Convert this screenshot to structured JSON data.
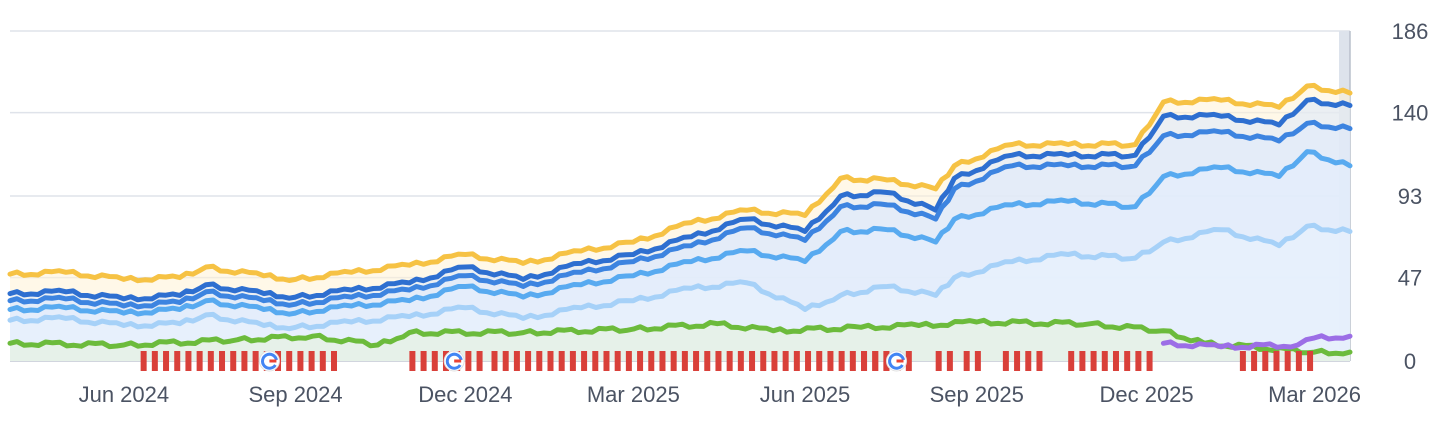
{
  "chart_data": {
    "type": "area",
    "x_axis": {
      "min": "2024-04-01",
      "max": "2026-03-20",
      "tick_labels": [
        {
          "label": "Jun 2024",
          "date": "2024-06-01"
        },
        {
          "label": "Sep 2024",
          "date": "2024-09-01"
        },
        {
          "label": "Dec 2024",
          "date": "2024-12-01"
        },
        {
          "label": "Mar 2025",
          "date": "2025-03-01"
        },
        {
          "label": "Jun 2025",
          "date": "2025-06-01"
        },
        {
          "label": "Sep 2025",
          "date": "2025-09-01"
        },
        {
          "label": "Dec 2025",
          "date": "2025-12-01"
        },
        {
          "label": "Mar 2026",
          "date": "2026-03-01"
        }
      ]
    },
    "y_axis": {
      "position": "right",
      "ylim": [
        0,
        186
      ],
      "tick_labels": [
        "0",
        "47",
        "93",
        "140",
        "186"
      ],
      "tick_values": [
        0,
        47,
        93,
        140,
        186
      ],
      "grid": true
    },
    "series": [
      {
        "color": "#f6c244",
        "fill": "#fff3d6",
        "points": [
          [
            "2024-04-01",
            49
          ],
          [
            "2024-05-01",
            50
          ],
          [
            "2024-06-01",
            46
          ],
          [
            "2024-07-01",
            47
          ],
          [
            "2024-07-15",
            53
          ],
          [
            "2024-08-15",
            48
          ],
          [
            "2024-09-01",
            46
          ],
          [
            "2024-10-01",
            50
          ],
          [
            "2024-11-01",
            54
          ],
          [
            "2024-12-01",
            60
          ],
          [
            "2025-01-01",
            55
          ],
          [
            "2025-02-01",
            62
          ],
          [
            "2025-03-01",
            67
          ],
          [
            "2025-04-01",
            78
          ],
          [
            "2025-05-01",
            85
          ],
          [
            "2025-06-01",
            82
          ],
          [
            "2025-06-20",
            103
          ],
          [
            "2025-07-15",
            102
          ],
          [
            "2025-08-10",
            97
          ],
          [
            "2025-08-20",
            110
          ],
          [
            "2025-09-20",
            122
          ],
          [
            "2025-10-20",
            122
          ],
          [
            "2025-11-25",
            122
          ],
          [
            "2025-12-10",
            146
          ],
          [
            "2026-01-10",
            147
          ],
          [
            "2026-02-10",
            143
          ],
          [
            "2026-02-25",
            155
          ],
          [
            "2026-03-20",
            151
          ]
        ]
      },
      {
        "color": "#2e6fd0",
        "fill": "#dbe8fb",
        "points": [
          [
            "2024-04-01",
            38
          ],
          [
            "2024-05-01",
            39
          ],
          [
            "2024-06-01",
            35
          ],
          [
            "2024-07-01",
            37
          ],
          [
            "2024-07-15",
            43
          ],
          [
            "2024-08-15",
            38
          ],
          [
            "2024-09-01",
            36
          ],
          [
            "2024-10-01",
            40
          ],
          [
            "2024-11-01",
            44
          ],
          [
            "2024-12-01",
            53
          ],
          [
            "2025-01-01",
            46
          ],
          [
            "2025-02-01",
            55
          ],
          [
            "2025-03-01",
            60
          ],
          [
            "2025-04-01",
            70
          ],
          [
            "2025-05-01",
            80
          ],
          [
            "2025-06-01",
            73
          ],
          [
            "2025-06-20",
            93
          ],
          [
            "2025-07-15",
            95
          ],
          [
            "2025-08-10",
            85
          ],
          [
            "2025-08-20",
            103
          ],
          [
            "2025-09-20",
            116
          ],
          [
            "2025-10-20",
            116
          ],
          [
            "2025-11-25",
            116
          ],
          [
            "2025-12-10",
            138
          ],
          [
            "2026-01-10",
            138
          ],
          [
            "2026-02-10",
            133
          ],
          [
            "2026-02-25",
            147
          ],
          [
            "2026-03-20",
            144
          ]
        ]
      },
      {
        "color": "#3d84e0",
        "fill": "#dfeafc",
        "points": [
          [
            "2024-04-01",
            34
          ],
          [
            "2024-05-01",
            35
          ],
          [
            "2024-06-01",
            31
          ],
          [
            "2024-07-01",
            33
          ],
          [
            "2024-07-15",
            39
          ],
          [
            "2024-08-15",
            34
          ],
          [
            "2024-09-01",
            32
          ],
          [
            "2024-10-01",
            36
          ],
          [
            "2024-11-01",
            40
          ],
          [
            "2024-12-01",
            48
          ],
          [
            "2025-01-01",
            42
          ],
          [
            "2025-02-01",
            50
          ],
          [
            "2025-03-01",
            56
          ],
          [
            "2025-04-01",
            65
          ],
          [
            "2025-05-01",
            75
          ],
          [
            "2025-06-01",
            68
          ],
          [
            "2025-06-20",
            87
          ],
          [
            "2025-07-15",
            88
          ],
          [
            "2025-08-10",
            80
          ],
          [
            "2025-08-20",
            97
          ],
          [
            "2025-09-20",
            110
          ],
          [
            "2025-10-20",
            110
          ],
          [
            "2025-11-25",
            110
          ],
          [
            "2025-12-10",
            127
          ],
          [
            "2026-01-10",
            129
          ],
          [
            "2026-02-10",
            124
          ],
          [
            "2026-02-25",
            134
          ],
          [
            "2026-03-20",
            131
          ]
        ]
      },
      {
        "color": "#58aaf0",
        "fill": "#e3eefd",
        "points": [
          [
            "2024-04-01",
            29
          ],
          [
            "2024-05-01",
            30
          ],
          [
            "2024-06-01",
            27
          ],
          [
            "2024-07-01",
            29
          ],
          [
            "2024-07-15",
            34
          ],
          [
            "2024-08-15",
            29
          ],
          [
            "2024-09-01",
            27
          ],
          [
            "2024-10-01",
            31
          ],
          [
            "2024-11-01",
            34
          ],
          [
            "2024-12-01",
            42
          ],
          [
            "2025-01-01",
            36
          ],
          [
            "2025-02-01",
            43
          ],
          [
            "2025-03-01",
            48
          ],
          [
            "2025-04-01",
            56
          ],
          [
            "2025-05-01",
            62
          ],
          [
            "2025-06-01",
            56
          ],
          [
            "2025-06-20",
            73
          ],
          [
            "2025-07-15",
            74
          ],
          [
            "2025-08-10",
            67
          ],
          [
            "2025-08-20",
            80
          ],
          [
            "2025-09-20",
            88
          ],
          [
            "2025-10-20",
            90
          ],
          [
            "2025-11-25",
            87
          ],
          [
            "2025-12-10",
            104
          ],
          [
            "2026-01-10",
            109
          ],
          [
            "2026-02-10",
            104
          ],
          [
            "2026-02-25",
            118
          ],
          [
            "2026-03-20",
            110
          ]
        ]
      },
      {
        "color": "#a6d1f8",
        "fill": "#e9f2fd",
        "points": [
          [
            "2024-04-01",
            23
          ],
          [
            "2024-05-01",
            24
          ],
          [
            "2024-06-01",
            20
          ],
          [
            "2024-07-01",
            21
          ],
          [
            "2024-07-15",
            26
          ],
          [
            "2024-08-15",
            20
          ],
          [
            "2024-09-01",
            19
          ],
          [
            "2024-10-01",
            22
          ],
          [
            "2024-11-01",
            25
          ],
          [
            "2024-12-01",
            30
          ],
          [
            "2025-01-01",
            24
          ],
          [
            "2025-02-01",
            30
          ],
          [
            "2025-03-01",
            34
          ],
          [
            "2025-04-01",
            41
          ],
          [
            "2025-05-01",
            44
          ],
          [
            "2025-06-01",
            29
          ],
          [
            "2025-06-20",
            37
          ],
          [
            "2025-07-15",
            42
          ],
          [
            "2025-08-10",
            37
          ],
          [
            "2025-08-20",
            47
          ],
          [
            "2025-09-20",
            56
          ],
          [
            "2025-10-20",
            60
          ],
          [
            "2025-11-25",
            58
          ],
          [
            "2025-12-10",
            67
          ],
          [
            "2026-01-10",
            74
          ],
          [
            "2026-02-10",
            65
          ],
          [
            "2026-02-25",
            76
          ],
          [
            "2026-03-20",
            73
          ]
        ]
      },
      {
        "color": "#6cbb3c",
        "fill": "#e6f3d8",
        "points": [
          [
            "2024-04-01",
            10
          ],
          [
            "2024-06-01",
            9
          ],
          [
            "2024-08-01",
            12
          ],
          [
            "2024-09-10",
            14
          ],
          [
            "2024-10-15",
            9
          ],
          [
            "2024-11-01",
            16
          ],
          [
            "2025-01-01",
            16
          ],
          [
            "2025-03-01",
            18
          ],
          [
            "2025-04-15",
            21
          ],
          [
            "2025-05-15",
            17
          ],
          [
            "2025-07-01",
            19
          ],
          [
            "2025-08-01",
            20
          ],
          [
            "2025-09-01",
            22
          ],
          [
            "2025-11-01",
            21
          ],
          [
            "2025-12-10",
            17
          ],
          [
            "2026-01-01",
            10
          ],
          [
            "2026-03-01",
            5
          ],
          [
            "2026-03-20",
            5
          ]
        ]
      },
      {
        "color": "#9c6ee6",
        "fill": "none",
        "points": [
          [
            "2025-12-10",
            10
          ],
          [
            "2026-01-10",
            8
          ],
          [
            "2026-02-20",
            9
          ],
          [
            "2026-03-01",
            13
          ],
          [
            "2026-03-20",
            14
          ]
        ]
      }
    ],
    "event_markers": {
      "color": "#d9403a",
      "google_icon_dates": [
        "2024-08-18",
        "2024-11-25",
        "2025-07-20"
      ]
    }
  }
}
